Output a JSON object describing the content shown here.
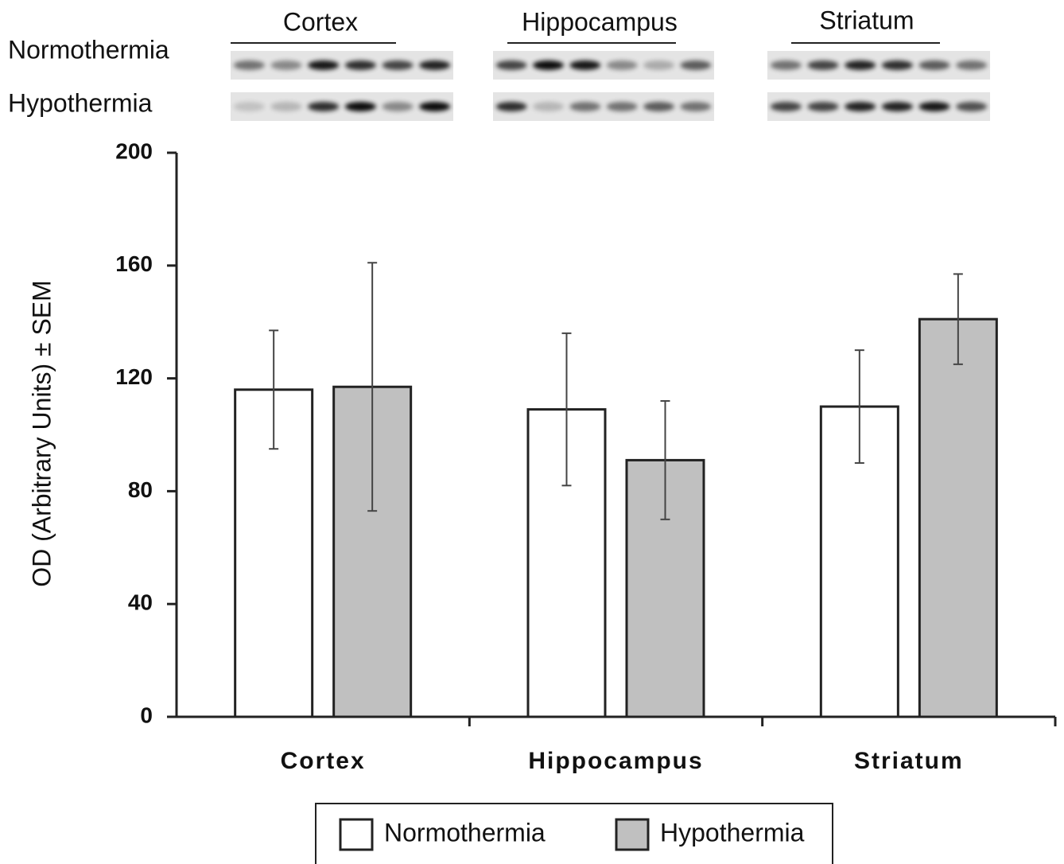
{
  "blots": {
    "regions": [
      "Cortex",
      "Hippocampus",
      "Striatum"
    ],
    "rows": [
      "Normothermia",
      "Hypothermia"
    ]
  },
  "chart_data": {
    "type": "bar",
    "y_label": "OD (Arbitrary Units) ± SEM",
    "categories": [
      "Cortex",
      "Hippocampus",
      "Striatum"
    ],
    "series": [
      {
        "name": "Normothermia",
        "color": "#ffffff",
        "values": [
          116,
          109,
          110
        ],
        "errors": [
          21,
          27,
          20
        ]
      },
      {
        "name": "Hypothermia",
        "color": "#c0c0c0",
        "values": [
          117,
          91,
          141
        ],
        "errors": [
          44,
          21,
          16
        ]
      }
    ],
    "ylim": [
      0,
      200
    ],
    "yticks": [
      0,
      40,
      80,
      120,
      160,
      200
    ],
    "legend": "bottom"
  }
}
